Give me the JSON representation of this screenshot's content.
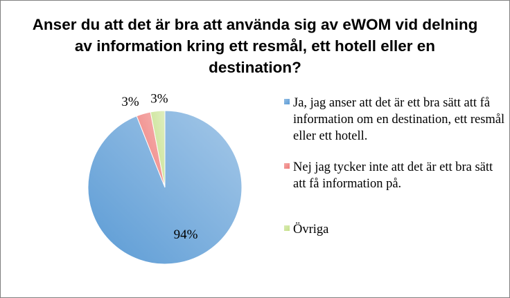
{
  "chart_data": {
    "type": "pie",
    "title": "Anser du att det är bra att använda sig av eWOM vid delning av information kring ett resmål, ett hotell eller en destination?",
    "slices": [
      {
        "label": "Ja, jag anser att det är ett bra sätt att få information om en destination, ett resmål eller ett hotell.",
        "value": 94,
        "value_label": "94%",
        "color": "#5b9bd5"
      },
      {
        "label": "Nej jag tycker inte att det är ett bra sätt att få information på.",
        "value": 3,
        "value_label": "3%",
        "color": "#ee7b78"
      },
      {
        "label": "Övriga",
        "value": 3,
        "value_label": "3%",
        "color": "#c5e08a"
      }
    ],
    "legend_position": "right"
  }
}
